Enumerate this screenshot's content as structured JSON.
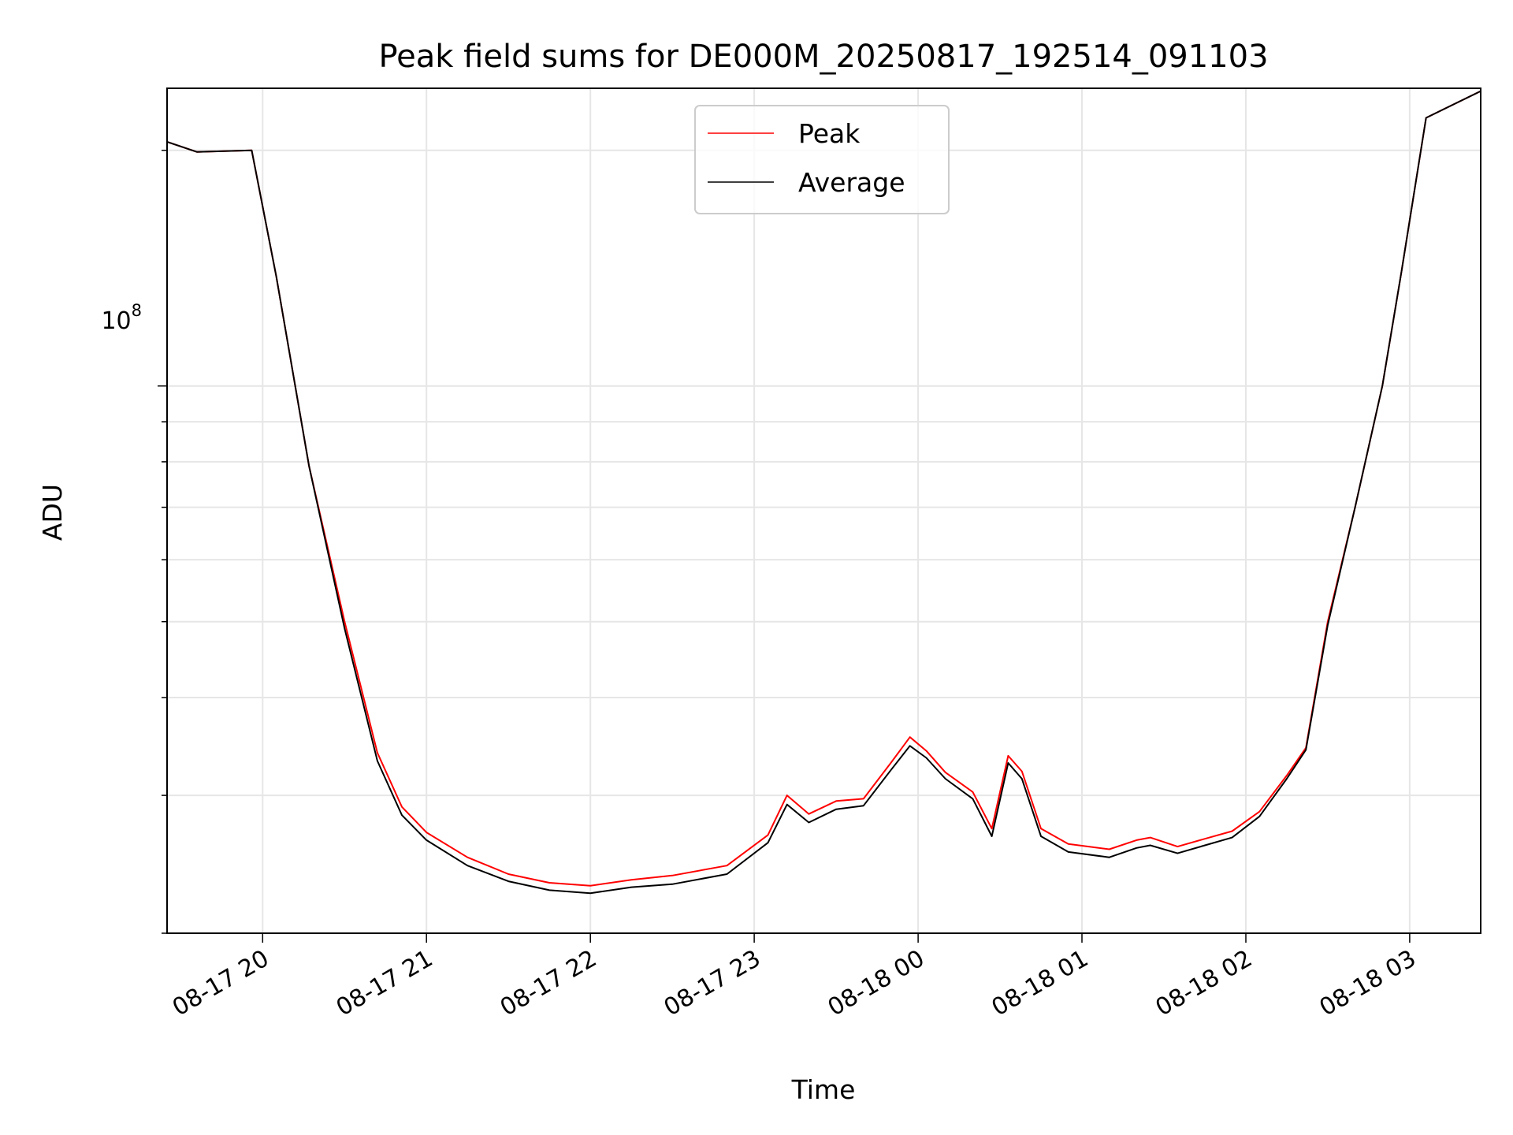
{
  "chart_data": {
    "type": "line",
    "title": "Peak field sums for DE000M_20250817_192514_091103",
    "xlabel": "Time",
    "ylabel": "ADU",
    "yscale": "log",
    "ylim": [
      20000000,
      240000000
    ],
    "xlim": [
      "2025-08-17 19:25",
      "2025-08-18 03:26"
    ],
    "grid": true,
    "legend_position": "top-center",
    "x_ticks": [
      {
        "t": "2025-08-17 20:00",
        "label": "08-17 20"
      },
      {
        "t": "2025-08-17 21:00",
        "label": "08-17 21"
      },
      {
        "t": "2025-08-17 22:00",
        "label": "08-17 22"
      },
      {
        "t": "2025-08-17 23:00",
        "label": "08-17 23"
      },
      {
        "t": "2025-08-18 00:00",
        "label": "08-18 00"
      },
      {
        "t": "2025-08-18 01:00",
        "label": "08-18 01"
      },
      {
        "t": "2025-08-18 02:00",
        "label": "08-18 02"
      },
      {
        "t": "2025-08-18 03:00",
        "label": "08-18 03"
      }
    ],
    "y_major_tick_label": {
      "base": "10",
      "exponent": "8",
      "value": 100000000
    },
    "series": [
      {
        "name": "Peak",
        "color": "#ff0000",
        "x": [
          "2025-08-17 19:25",
          "2025-08-17 19:36",
          "2025-08-17 19:56",
          "2025-08-17 20:05",
          "2025-08-17 20:17",
          "2025-08-17 20:30",
          "2025-08-17 20:42",
          "2025-08-17 20:51",
          "2025-08-17 21:00",
          "2025-08-17 21:15",
          "2025-08-17 21:30",
          "2025-08-17 21:45",
          "2025-08-17 22:00",
          "2025-08-17 22:15",
          "2025-08-17 22:30",
          "2025-08-17 22:50",
          "2025-08-17 23:05",
          "2025-08-17 23:12",
          "2025-08-17 23:20",
          "2025-08-17 23:30",
          "2025-08-17 23:40",
          "2025-08-17 23:50",
          "2025-08-17 23:57",
          "2025-08-18 00:03",
          "2025-08-18 00:10",
          "2025-08-18 00:20",
          "2025-08-18 00:27",
          "2025-08-18 00:33",
          "2025-08-18 00:38",
          "2025-08-18 00:45",
          "2025-08-18 00:55",
          "2025-08-18 01:10",
          "2025-08-18 01:20",
          "2025-08-18 01:25",
          "2025-08-18 01:35",
          "2025-08-18 01:45",
          "2025-08-18 01:55",
          "2025-08-18 02:05",
          "2025-08-18 02:15",
          "2025-08-18 02:22",
          "2025-08-18 02:30",
          "2025-08-18 02:40",
          "2025-08-18 02:50",
          "2025-08-18 02:57",
          "2025-08-18 03:06",
          "2025-08-18 03:26"
        ],
        "y": [
          205000000,
          199000000,
          200000000,
          138000000,
          79000000,
          50000000,
          34000000,
          29000000,
          26900000,
          25000000,
          23800000,
          23200000,
          23000000,
          23400000,
          23700000,
          24400000,
          26700000,
          30000000,
          28400000,
          29500000,
          29700000,
          33000000,
          35600000,
          34200000,
          32100000,
          30300000,
          27200000,
          33700000,
          32200000,
          27200000,
          26000000,
          25600000,
          26300000,
          26500000,
          25800000,
          26400000,
          27000000,
          28600000,
          31800000,
          34500000,
          50000000,
          70000000,
          100000000,
          140000000,
          220000000,
          238000000
        ]
      },
      {
        "name": "Average",
        "color": "#000000",
        "x": [
          "2025-08-17 19:25",
          "2025-08-17 19:36",
          "2025-08-17 19:56",
          "2025-08-17 20:05",
          "2025-08-17 20:17",
          "2025-08-17 20:30",
          "2025-08-17 20:42",
          "2025-08-17 20:51",
          "2025-08-17 21:00",
          "2025-08-17 21:15",
          "2025-08-17 21:30",
          "2025-08-17 21:45",
          "2025-08-17 22:00",
          "2025-08-17 22:15",
          "2025-08-17 22:30",
          "2025-08-17 22:50",
          "2025-08-17 23:05",
          "2025-08-17 23:12",
          "2025-08-17 23:20",
          "2025-08-17 23:30",
          "2025-08-17 23:40",
          "2025-08-17 23:50",
          "2025-08-17 23:57",
          "2025-08-18 00:03",
          "2025-08-18 00:10",
          "2025-08-18 00:20",
          "2025-08-18 00:27",
          "2025-08-18 00:33",
          "2025-08-18 00:38",
          "2025-08-18 00:45",
          "2025-08-18 00:55",
          "2025-08-18 01:10",
          "2025-08-18 01:20",
          "2025-08-18 01:25",
          "2025-08-18 01:35",
          "2025-08-18 01:45",
          "2025-08-18 01:55",
          "2025-08-18 02:05",
          "2025-08-18 02:15",
          "2025-08-18 02:22",
          "2025-08-18 02:30",
          "2025-08-18 02:40",
          "2025-08-18 02:50",
          "2025-08-18 02:57",
          "2025-08-18 03:06",
          "2025-08-18 03:26"
        ],
        "y": [
          205000000,
          199000000,
          200000000,
          138000000,
          79000000,
          49000000,
          33200000,
          28300000,
          26300000,
          24400000,
          23300000,
          22700000,
          22500000,
          22900000,
          23100000,
          23800000,
          26100000,
          29200000,
          27700000,
          28800000,
          29100000,
          32300000,
          34700000,
          33500000,
          31500000,
          29700000,
          26600000,
          33000000,
          31500000,
          26600000,
          25400000,
          25000000,
          25700000,
          25900000,
          25300000,
          25900000,
          26500000,
          28200000,
          31500000,
          34300000,
          49500000,
          70000000,
          100000000,
          140000000,
          220000000,
          238000000
        ]
      }
    ]
  }
}
